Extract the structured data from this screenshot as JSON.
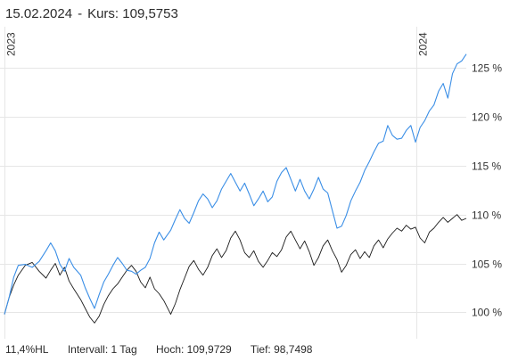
{
  "header": {
    "date": "15.02.2024",
    "separator": "-",
    "price_label": "Kurs: 109,5753"
  },
  "footer": {
    "range": "11,4%HL",
    "interval": "Intervall: 1 Tag",
    "high": "Hoch: 109,9729",
    "low": "Tief: 98,7498"
  },
  "colors": {
    "series_main": "#1a1a1a",
    "series_compare": "#3a8ee6",
    "grid": "#e6e6e6"
  },
  "chart_data": {
    "type": "line",
    "title": "",
    "x_labels": [
      "2023",
      "2024"
    ],
    "y_ticks": [
      {
        "value": 100,
        "label": "100 %"
      },
      {
        "value": 105,
        "label": "105 %"
      },
      {
        "value": 110,
        "label": "110 %"
      },
      {
        "value": 115,
        "label": "115 %"
      },
      {
        "value": 120,
        "label": "120 %"
      },
      {
        "value": 125,
        "label": "125 %"
      }
    ],
    "ylim": [
      97.3,
      129.2
    ],
    "xlim": [
      0,
      1
    ],
    "grid": true,
    "series": [
      {
        "role": "main",
        "points": [
          [
            0.0,
            99.8
          ],
          [
            0.01,
            101.5
          ],
          [
            0.02,
            102.8
          ],
          [
            0.03,
            103.8
          ],
          [
            0.045,
            104.8
          ],
          [
            0.06,
            105.1
          ],
          [
            0.075,
            104.2
          ],
          [
            0.09,
            103.5
          ],
          [
            0.1,
            104.3
          ],
          [
            0.11,
            105.0
          ],
          [
            0.12,
            103.8
          ],
          [
            0.13,
            104.6
          ],
          [
            0.14,
            103.2
          ],
          [
            0.15,
            102.4
          ],
          [
            0.165,
            101.3
          ],
          [
            0.175,
            100.4
          ],
          [
            0.185,
            99.5
          ],
          [
            0.195,
            98.9
          ],
          [
            0.205,
            99.6
          ],
          [
            0.215,
            100.8
          ],
          [
            0.225,
            101.7
          ],
          [
            0.235,
            102.4
          ],
          [
            0.245,
            102.9
          ],
          [
            0.255,
            103.6
          ],
          [
            0.265,
            104.3
          ],
          [
            0.275,
            104.8
          ],
          [
            0.285,
            104.2
          ],
          [
            0.295,
            103.1
          ],
          [
            0.305,
            102.5
          ],
          [
            0.315,
            103.6
          ],
          [
            0.325,
            102.4
          ],
          [
            0.335,
            101.9
          ],
          [
            0.345,
            101.2
          ],
          [
            0.36,
            99.8
          ],
          [
            0.37,
            100.9
          ],
          [
            0.38,
            102.3
          ],
          [
            0.39,
            103.5
          ],
          [
            0.4,
            104.7
          ],
          [
            0.41,
            105.3
          ],
          [
            0.42,
            104.4
          ],
          [
            0.43,
            103.8
          ],
          [
            0.44,
            104.6
          ],
          [
            0.45,
            105.8
          ],
          [
            0.46,
            106.5
          ],
          [
            0.47,
            105.6
          ],
          [
            0.48,
            106.3
          ],
          [
            0.49,
            107.6
          ],
          [
            0.5,
            108.3
          ],
          [
            0.51,
            107.4
          ],
          [
            0.52,
            106.1
          ],
          [
            0.53,
            105.6
          ],
          [
            0.54,
            106.3
          ],
          [
            0.55,
            105.2
          ],
          [
            0.56,
            104.6
          ],
          [
            0.57,
            105.3
          ],
          [
            0.58,
            106.1
          ],
          [
            0.59,
            105.7
          ],
          [
            0.6,
            106.4
          ],
          [
            0.61,
            107.7
          ],
          [
            0.62,
            108.3
          ],
          [
            0.63,
            107.4
          ],
          [
            0.64,
            106.5
          ],
          [
            0.65,
            107.3
          ],
          [
            0.66,
            106.2
          ],
          [
            0.67,
            104.8
          ],
          [
            0.68,
            105.6
          ],
          [
            0.69,
            106.8
          ],
          [
            0.7,
            107.4
          ],
          [
            0.71,
            106.3
          ],
          [
            0.72,
            105.4
          ],
          [
            0.73,
            104.1
          ],
          [
            0.74,
            104.8
          ],
          [
            0.75,
            105.9
          ],
          [
            0.76,
            106.4
          ],
          [
            0.77,
            105.5
          ],
          [
            0.78,
            106.2
          ],
          [
            0.79,
            105.6
          ],
          [
            0.8,
            106.8
          ],
          [
            0.81,
            107.4
          ],
          [
            0.82,
            106.6
          ],
          [
            0.83,
            107.5
          ],
          [
            0.84,
            108.1
          ],
          [
            0.85,
            108.6
          ],
          [
            0.86,
            108.3
          ],
          [
            0.87,
            108.9
          ],
          [
            0.88,
            108.5
          ],
          [
            0.89,
            108.7
          ],
          [
            0.9,
            107.6
          ],
          [
            0.91,
            107.1
          ],
          [
            0.92,
            108.2
          ],
          [
            0.93,
            108.6
          ],
          [
            0.94,
            109.2
          ],
          [
            0.95,
            109.7
          ],
          [
            0.96,
            109.2
          ],
          [
            0.97,
            109.6
          ],
          [
            0.98,
            110.0
          ],
          [
            0.99,
            109.4
          ],
          [
            1.0,
            109.6
          ]
        ]
      },
      {
        "role": "compare",
        "points": [
          [
            0.0,
            99.8
          ],
          [
            0.01,
            101.5
          ],
          [
            0.02,
            103.6
          ],
          [
            0.03,
            104.8
          ],
          [
            0.045,
            104.9
          ],
          [
            0.06,
            104.6
          ],
          [
            0.075,
            105.2
          ],
          [
            0.09,
            106.3
          ],
          [
            0.1,
            107.1
          ],
          [
            0.11,
            106.3
          ],
          [
            0.12,
            104.9
          ],
          [
            0.13,
            104.2
          ],
          [
            0.14,
            105.5
          ],
          [
            0.15,
            104.6
          ],
          [
            0.165,
            103.8
          ],
          [
            0.175,
            102.5
          ],
          [
            0.185,
            101.4
          ],
          [
            0.195,
            100.4
          ],
          [
            0.205,
            101.8
          ],
          [
            0.215,
            103.1
          ],
          [
            0.225,
            103.9
          ],
          [
            0.235,
            104.8
          ],
          [
            0.245,
            105.6
          ],
          [
            0.255,
            105.0
          ],
          [
            0.265,
            104.3
          ],
          [
            0.275,
            104.2
          ],
          [
            0.285,
            103.9
          ],
          [
            0.295,
            104.3
          ],
          [
            0.305,
            104.6
          ],
          [
            0.315,
            105.5
          ],
          [
            0.325,
            107.1
          ],
          [
            0.335,
            108.2
          ],
          [
            0.345,
            107.4
          ],
          [
            0.36,
            108.4
          ],
          [
            0.37,
            109.5
          ],
          [
            0.38,
            110.5
          ],
          [
            0.39,
            109.6
          ],
          [
            0.4,
            109.1
          ],
          [
            0.41,
            110.2
          ],
          [
            0.42,
            111.4
          ],
          [
            0.43,
            112.1
          ],
          [
            0.44,
            111.6
          ],
          [
            0.45,
            110.7
          ],
          [
            0.46,
            111.4
          ],
          [
            0.47,
            112.6
          ],
          [
            0.48,
            113.4
          ],
          [
            0.49,
            114.2
          ],
          [
            0.5,
            113.3
          ],
          [
            0.51,
            112.4
          ],
          [
            0.52,
            113.2
          ],
          [
            0.53,
            112.1
          ],
          [
            0.54,
            110.9
          ],
          [
            0.55,
            111.6
          ],
          [
            0.56,
            112.4
          ],
          [
            0.57,
            111.3
          ],
          [
            0.58,
            111.8
          ],
          [
            0.59,
            113.4
          ],
          [
            0.6,
            114.3
          ],
          [
            0.61,
            114.8
          ],
          [
            0.62,
            113.6
          ],
          [
            0.63,
            112.4
          ],
          [
            0.64,
            113.6
          ],
          [
            0.65,
            112.4
          ],
          [
            0.66,
            111.6
          ],
          [
            0.67,
            112.6
          ],
          [
            0.68,
            113.8
          ],
          [
            0.69,
            112.6
          ],
          [
            0.7,
            112.2
          ],
          [
            0.71,
            110.4
          ],
          [
            0.72,
            108.6
          ],
          [
            0.73,
            108.8
          ],
          [
            0.74,
            109.9
          ],
          [
            0.75,
            111.4
          ],
          [
            0.76,
            112.4
          ],
          [
            0.77,
            113.3
          ],
          [
            0.78,
            114.5
          ],
          [
            0.79,
            115.4
          ],
          [
            0.8,
            116.4
          ],
          [
            0.81,
            117.3
          ],
          [
            0.82,
            117.5
          ],
          [
            0.83,
            119.1
          ],
          [
            0.84,
            118.1
          ],
          [
            0.85,
            117.7
          ],
          [
            0.86,
            117.8
          ],
          [
            0.87,
            118.6
          ],
          [
            0.88,
            119.1
          ],
          [
            0.89,
            117.4
          ],
          [
            0.9,
            118.9
          ],
          [
            0.91,
            119.6
          ],
          [
            0.92,
            120.6
          ],
          [
            0.93,
            121.2
          ],
          [
            0.94,
            122.6
          ],
          [
            0.95,
            123.4
          ],
          [
            0.96,
            121.9
          ],
          [
            0.97,
            124.4
          ],
          [
            0.98,
            125.4
          ],
          [
            0.99,
            125.7
          ],
          [
            1.0,
            126.4
          ]
        ]
      }
    ]
  }
}
